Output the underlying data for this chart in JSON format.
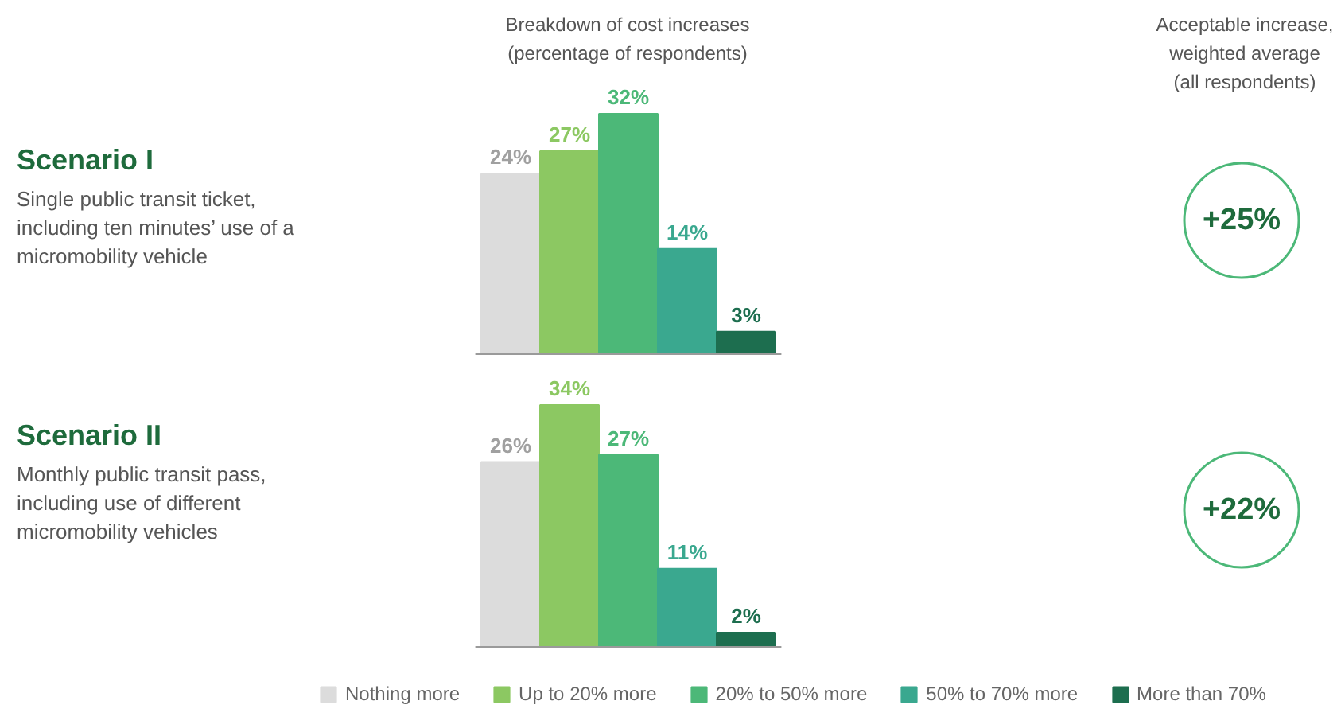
{
  "chart_data": [
    {
      "type": "other",
      "title": "Scenario I",
      "subtitle": "Single public transit ticket, including ten minutes’ use of a micromobility vehicle"
    },
    {
      "type": "bar",
      "categories": [
        null
      ],
      "series": [
        {
          "color": "#dcdcdc",
          "values": [
            24
          ],
          "value_labels": [
            "24%"
          ]
        },
        {
          "color": "#8cc862",
          "values": [
            27
          ],
          "value_labels": [
            "27%"
          ]
        },
        {
          "color": "#4cb878",
          "values": [
            32
          ],
          "value_labels": [
            "32%"
          ]
        },
        {
          "color": "#3aa88f",
          "values": [
            14
          ],
          "value_labels": [
            "14%"
          ]
        },
        {
          "color": "#1d6e4f",
          "values": [
            3
          ],
          "value_labels": [
            "3%"
          ]
        }
      ],
      "annotations": [
        "Breakdown of cost increases (percentage of respondents)",
        "Acceptable increase, weighted average (all respondents)",
        "+25%"
      ]
    },
    {
      "type": "other",
      "title": "Scenario II",
      "subtitle": "Monthly public transit pass, including use of different micromobility vehicles"
    },
    {
      "type": "bar",
      "categories": [
        null
      ],
      "legend": "bottom",
      "series": [
        {
          "name": "Nothing more",
          "color": "#dcdcdc",
          "values": [
            26
          ],
          "value_labels": [
            "26%"
          ]
        },
        {
          "name": "Up to 20% more",
          "color": "#8cc862",
          "values": [
            34
          ],
          "value_labels": [
            "34%"
          ]
        },
        {
          "name": "20% to 50% more",
          "color": "#4cb878",
          "values": [
            27
          ],
          "value_labels": [
            "27%"
          ]
        },
        {
          "name": "50% to 70% more",
          "color": "#3aa88f",
          "values": [
            11
          ],
          "value_labels": [
            "11%"
          ]
        },
        {
          "name": "More than 70%",
          "color": "#1d6e4f",
          "values": [
            2
          ],
          "value_labels": [
            "2%"
          ]
        }
      ],
      "annotations": [
        "+22%"
      ]
    }
  ]
}
